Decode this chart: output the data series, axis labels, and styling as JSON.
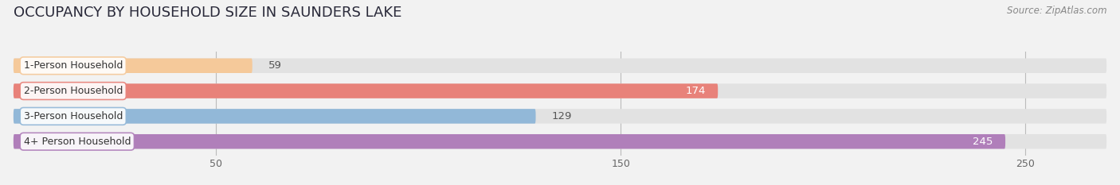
{
  "title": "OCCUPANCY BY HOUSEHOLD SIZE IN SAUNDERS LAKE",
  "source": "Source: ZipAtlas.com",
  "categories": [
    "1-Person Household",
    "2-Person Household",
    "3-Person Household",
    "4+ Person Household"
  ],
  "values": [
    59,
    174,
    129,
    245
  ],
  "bar_colors": [
    "#f5c99a",
    "#e8827a",
    "#92b8d8",
    "#b07fba"
  ],
  "label_bg_colors": [
    "#f5c99a",
    "#e8827a",
    "#92b8d8",
    "#b07fba"
  ],
  "value_label_colors": [
    "#555555",
    "#ffffff",
    "#555555",
    "#ffffff"
  ],
  "xlim_max": 270,
  "xticks": [
    50,
    150,
    250
  ],
  "background_color": "#f2f2f2",
  "bar_bg_color": "#e2e2e2",
  "title_fontsize": 13,
  "source_fontsize": 8.5,
  "label_fontsize": 9,
  "value_fontsize": 9.5,
  "bar_height": 0.58
}
